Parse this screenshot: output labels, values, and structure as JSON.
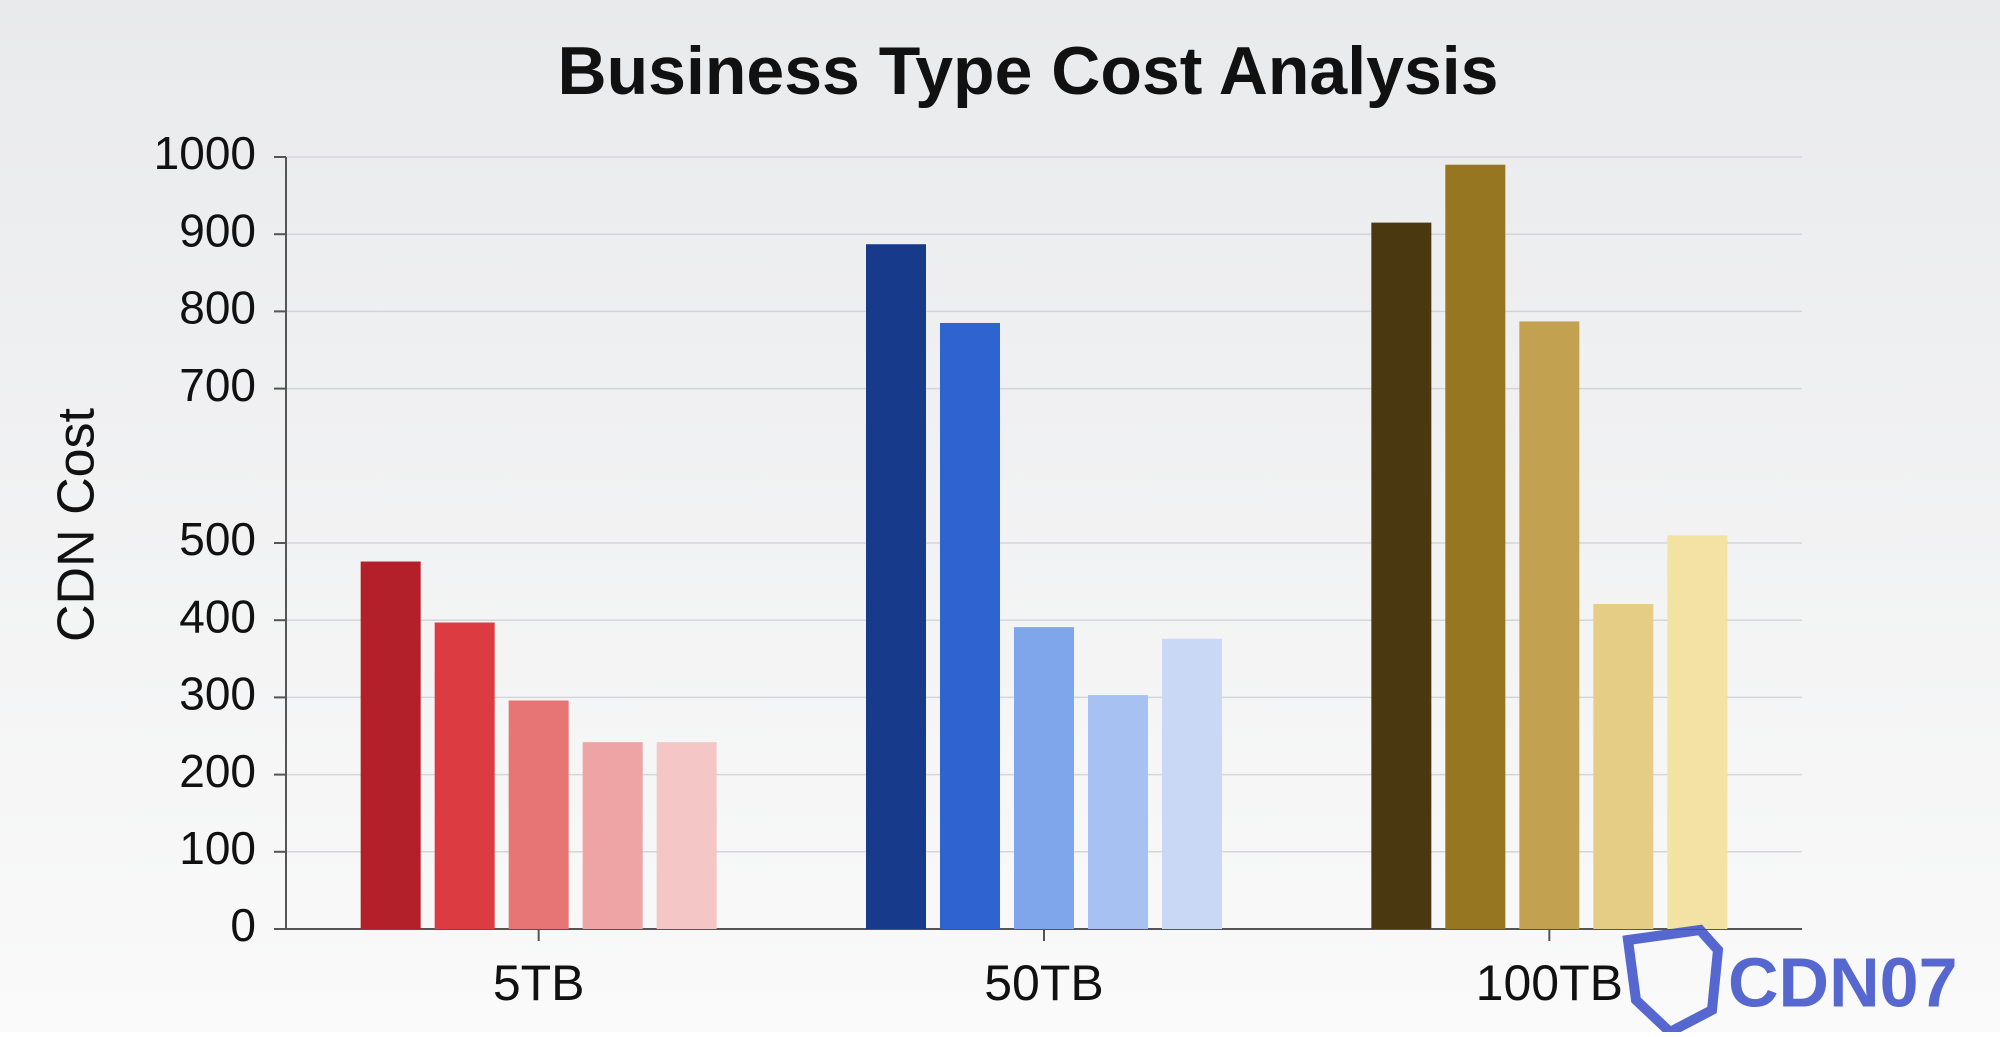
{
  "chart_data": {
    "type": "grouped-bar",
    "title": "Business Type Cost Analysis",
    "y_label": "CDN Cost",
    "categories": [
      "5TB",
      "50TB",
      "100TB"
    ],
    "values": [
      [
        476,
        397,
        296,
        242,
        242
      ],
      [
        887,
        785,
        391,
        303,
        376
      ],
      [
        915,
        990,
        787,
        421,
        510
      ]
    ],
    "colors": [
      [
        "#b3202a",
        "#dc3b42",
        "#e87575",
        "#eea3a5",
        "#f4c6c6"
      ],
      [
        "#173a8a",
        "#2f63cf",
        "#7fa6ea",
        "#a7c2f2",
        "#c8d8f5"
      ],
      [
        "#4a3810",
        "#977622",
        "#c2a150",
        "#e6cd86",
        "#f3e2a3"
      ]
    ],
    "ylim": [
      0,
      1000
    ],
    "yticks": [
      0,
      100,
      200,
      300,
      400,
      500,
      700,
      800,
      900,
      1000
    ],
    "grid": true,
    "watermark": "CDN07"
  }
}
